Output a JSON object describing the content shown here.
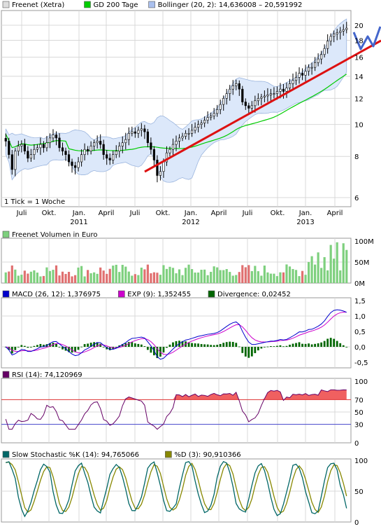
{
  "colors": {
    "price": "#000000",
    "gd200": "#00cc00",
    "bollinger_fill": "#dce8fa",
    "bollinger_line": "#9bb5de",
    "trend": "#dd1111",
    "annotation": "#4466cc",
    "vol_up": "#7ed07e",
    "vol_down": "#e07070",
    "macd": "#0000cc",
    "exp": "#cc00cc",
    "divergence": "#006600",
    "rsi": "#660066",
    "stoch_k": "#006666",
    "stoch_d": "#888800",
    "grid": "#d8d8d8",
    "frame": "#999999"
  },
  "chart_data": [
    {
      "type": "candlestick",
      "legend": [
        {
          "name": "Freenet (Xetra)",
          "color": "#dddddd",
          "icon": "square-icon"
        },
        {
          "name": "GD 200 Tage",
          "color": "#00cc00",
          "icon": "square-icon"
        },
        {
          "name": "Bollinger (20, 2): 14,636008 – 20,591992",
          "color": "#aac0ee",
          "icon": "square-icon"
        }
      ],
      "note": "1 Tick = 1 Woche",
      "yaxis": {
        "ticks": [
          "6",
          "8",
          "10",
          "12",
          "14",
          "16",
          "18",
          "20"
        ],
        "min": 5.5,
        "max": 21,
        "scale": "log"
      },
      "xaxis": {
        "months": [
          "Juli",
          "Okt.",
          "Jan.",
          "April",
          "Juli",
          "Okt.",
          "Jan.",
          "April",
          "Juli",
          "Okt.",
          "Jan.",
          "April"
        ],
        "years": [
          "2011",
          "2012",
          "2013"
        ]
      },
      "close_weekly": [
        8.9,
        8.1,
        7.3,
        8.3,
        8.6,
        8.7,
        8.3,
        7.9,
        8.1,
        8.4,
        8.5,
        8.7,
        8.5,
        8.8,
        9.1,
        9.3,
        9.1,
        8.5,
        8.3,
        8.1,
        7.7,
        7.5,
        7.4,
        7.7,
        8.1,
        8.4,
        8.3,
        8.6,
        8.8,
        8.9,
        8.7,
        8.1,
        7.9,
        7.8,
        8.1,
        8.3,
        8.6,
        8.8,
        9.0,
        9.4,
        9.5,
        9.4,
        9.6,
        9.7,
        9.5,
        8.8,
        8.4,
        7.8,
        7.0,
        7.2,
        7.7,
        8.2,
        8.4,
        8.7,
        8.9,
        9.1,
        9.2,
        9.4,
        9.4,
        9.6,
        9.8,
        10.0,
        10.1,
        10.3,
        10.5,
        10.6,
        10.8,
        11.1,
        11.5,
        12.0,
        12.4,
        12.8,
        13.1,
        13.3,
        12.8,
        11.7,
        11.4,
        11.2,
        11.4,
        11.8,
        12.0,
        12.1,
        12.2,
        12.3,
        12.4,
        12.4,
        12.6,
        12.8,
        12.6,
        12.9,
        13.3,
        13.6,
        13.9,
        14.3,
        14.1,
        14.5,
        14.9,
        14.9,
        15.4,
        15.8,
        16.3,
        17.0,
        17.9,
        18.5,
        18.8,
        19.0,
        19.2,
        19.4,
        19.6
      ]
    },
    {
      "type": "bar",
      "legend": [
        {
          "name": "Freenet Volumen in Euro",
          "color": "#7ed07e",
          "icon": "square-icon"
        }
      ],
      "yaxis": {
        "ticks": [
          "0M",
          "50M",
          "100M"
        ],
        "min": 0,
        "max": 100
      }
    },
    {
      "type": "line",
      "legend": [
        {
          "name": "MACD (26, 12): 1,376975",
          "color": "#0000cc",
          "icon": "square-icon"
        },
        {
          "name": "EXP (9): 1,352455",
          "color": "#cc00cc",
          "icon": "square-icon"
        },
        {
          "name": "Divergence: 0,02452",
          "color": "#006600",
          "icon": "square-icon"
        }
      ],
      "yaxis": {
        "ticks": [
          "-0,5",
          "0,0",
          "0,5",
          "1,0",
          "1,5"
        ],
        "min": -0.6,
        "max": 1.6
      }
    },
    {
      "type": "line",
      "legend": [
        {
          "name": "RSI (14): 74,120969",
          "color": "#660066",
          "icon": "square-icon"
        }
      ],
      "yaxis": {
        "ticks": [
          "0",
          "30",
          "50",
          "70",
          "100"
        ],
        "min": 0,
        "max": 100
      },
      "levels": [
        70,
        30
      ]
    },
    {
      "type": "line",
      "legend": [
        {
          "name": "Slow Stochastic %K (14): 94,765066",
          "color": "#006666",
          "icon": "square-icon"
        },
        {
          "name": "%D (3): 90,910366",
          "color": "#888800",
          "icon": "square-icon"
        }
      ],
      "yaxis": {
        "ticks": [
          "0",
          "50",
          "100"
        ],
        "min": 0,
        "max": 100
      }
    }
  ]
}
